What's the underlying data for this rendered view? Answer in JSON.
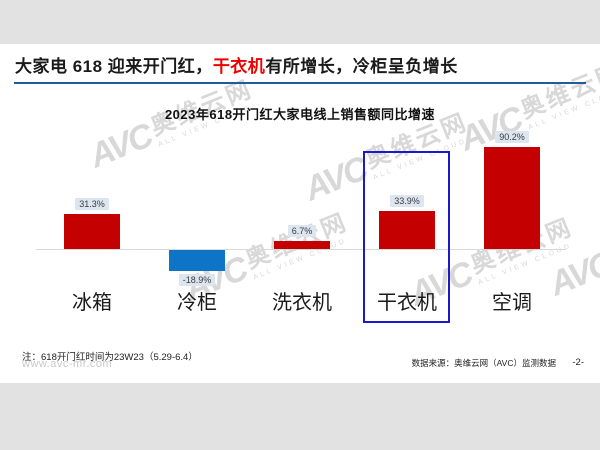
{
  "page": {
    "title_parts": {
      "pre": "大家电 618 迎来开门红，",
      "highlight": "干衣机",
      "post": "有所增长，冷柜呈负增长"
    },
    "note": "注：618开门红时间为23W23（5.29-6.4）",
    "source": "数据来源：奥维云网（AVC）监测数据",
    "page_number": "-2-",
    "watermark": {
      "logo": "AVC",
      "name": "奥维云网",
      "tagline": "ALL VIEW CLOUD",
      "url": "www.avc-mr.com"
    }
  },
  "chart_data": {
    "type": "bar",
    "title": "2023年618开门红大家电线上销售额同比增速",
    "categories": [
      "冰箱",
      "冷柜",
      "洗衣机",
      "干衣机",
      "空调"
    ],
    "values": [
      31.3,
      -18.9,
      6.7,
      33.9,
      90.2
    ],
    "value_labels": [
      "31.3%",
      "-18.9%",
      "6.7%",
      "33.9%",
      "90.2%"
    ],
    "unit": "%",
    "xlabel": "",
    "ylabel": "",
    "grid": false,
    "legend": false,
    "highlighted_category": "干衣机",
    "colors": {
      "positive_bar": "#c40000",
      "negative_bar": "#0e74c8",
      "value_label_bg": "#dde6f0",
      "highlight_box": "#1a1acc",
      "title_rule": "#1f5c99",
      "title_highlight": "#ee0000"
    }
  }
}
